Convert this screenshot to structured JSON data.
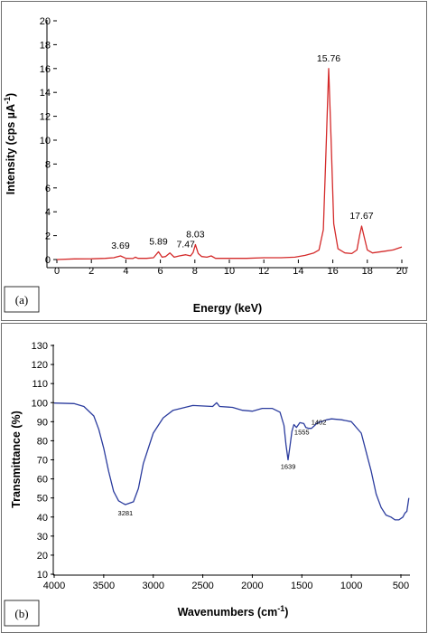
{
  "chart_data": [
    {
      "type": "line",
      "panel_label": "(a)",
      "xlabel": "Energy (keV)",
      "ylabel": "Intensity (cps µA",
      "ylabel_sup": "-1",
      "ylabel_close": ")",
      "xlim": [
        0,
        20
      ],
      "ylim": [
        0,
        20
      ],
      "x_ticks": [
        "0",
        "2",
        "4",
        "6",
        "8",
        "10",
        "12",
        "14",
        "16",
        "18",
        "20"
      ],
      "y_ticks": [
        "0",
        "2",
        "4",
        "6",
        "8",
        "10",
        "12",
        "14",
        "16",
        "18",
        "20"
      ],
      "grid": false,
      "line_color": "#d42a2a",
      "series": [
        {
          "x": [
            0.0,
            1.0,
            2.0,
            2.8,
            3.3,
            3.69,
            4.0,
            4.4,
            4.55,
            4.7,
            5.2,
            5.6,
            5.89,
            6.1,
            6.3,
            6.55,
            6.8,
            7.1,
            7.47,
            7.75,
            7.9,
            8.03,
            8.2,
            8.4,
            8.7,
            8.95,
            9.2,
            10.0,
            11.0,
            12.0,
            13.0,
            13.8,
            14.4,
            14.9,
            15.2,
            15.45,
            15.6,
            15.76,
            15.9,
            16.05,
            16.3,
            16.7,
            17.1,
            17.4,
            17.55,
            17.67,
            17.8,
            18.0,
            18.3,
            19.0,
            19.5,
            20.0
          ],
          "y": [
            0.0,
            0.05,
            0.06,
            0.1,
            0.15,
            0.3,
            0.1,
            0.08,
            0.2,
            0.1,
            0.1,
            0.15,
            0.65,
            0.2,
            0.25,
            0.55,
            0.2,
            0.3,
            0.4,
            0.3,
            0.6,
            1.25,
            0.5,
            0.25,
            0.2,
            0.3,
            0.1,
            0.1,
            0.1,
            0.15,
            0.15,
            0.2,
            0.35,
            0.55,
            0.8,
            2.5,
            9.0,
            16.0,
            10.0,
            3.0,
            0.9,
            0.55,
            0.5,
            0.8,
            2.0,
            2.8,
            2.0,
            0.8,
            0.55,
            0.7,
            0.8,
            1.05
          ]
        }
      ],
      "annotations": [
        {
          "text": "3.69",
          "x": 3.69,
          "y": 0.3
        },
        {
          "text": "5.89",
          "x": 5.89,
          "y": 0.65
        },
        {
          "text": "7.47",
          "x": 7.47,
          "y": 0.4
        },
        {
          "text": "8.03",
          "x": 8.03,
          "y": 1.25
        },
        {
          "text": "15.76",
          "x": 15.76,
          "y": 16.0
        },
        {
          "text": "17.67",
          "x": 17.67,
          "y": 2.8
        }
      ]
    },
    {
      "type": "line",
      "panel_label": "(b)",
      "xlabel": "Wavenumbers (cm",
      "xlabel_sup": "-1",
      "xlabel_close": ")",
      "ylabel": "Transmittance (%)",
      "xlim": [
        4000,
        500
      ],
      "x_reversed": true,
      "ylim": [
        10,
        130
      ],
      "x_ticks": [
        "4000",
        "3500",
        "3000",
        "2500",
        "2000",
        "1500",
        "1000",
        "500"
      ],
      "y_ticks": [
        "10",
        "20",
        "30",
        "40",
        "50",
        "60",
        "70",
        "80",
        "90",
        "100",
        "110",
        "120",
        "130"
      ],
      "grid": false,
      "line_color": "#2b3c9e",
      "series": [
        {
          "x": [
            4000,
            3800,
            3700,
            3600,
            3550,
            3500,
            3450,
            3400,
            3350,
            3300,
            3281,
            3200,
            3150,
            3100,
            3000,
            2900,
            2800,
            2600,
            2400,
            2360,
            2330,
            2200,
            2100,
            2000,
            1900,
            1800,
            1720,
            1680,
            1660,
            1639,
            1620,
            1600,
            1580,
            1555,
            1520,
            1480,
            1460,
            1430,
            1402,
            1370,
            1340,
            1300,
            1250,
            1200,
            1100,
            1000,
            900,
            850,
            800,
            750,
            700,
            650,
            600,
            560,
            520,
            480,
            460,
            440,
            420
          ],
          "y": [
            99.8,
            99.5,
            98.0,
            93.0,
            86.0,
            76.0,
            64.0,
            53.5,
            48.5,
            47.0,
            46.5,
            48.0,
            55.0,
            68.0,
            84.0,
            92.0,
            96.0,
            98.5,
            98.0,
            100.0,
            98.0,
            97.5,
            96.0,
            95.5,
            97.0,
            97.0,
            95.0,
            88.0,
            78.0,
            70.0,
            77.0,
            85.0,
            88.5,
            87.0,
            89.5,
            89.0,
            87.0,
            86.5,
            86.5,
            88.0,
            89.5,
            90.0,
            91.0,
            91.5,
            91.0,
            90.0,
            84.0,
            74.0,
            64.0,
            52.0,
            45.0,
            41.0,
            40.0,
            38.5,
            38.5,
            40.0,
            42.0,
            43.0,
            50.0
          ]
        }
      ],
      "annotations": [
        {
          "text": "3281",
          "x": 3281,
          "y": 46.5
        },
        {
          "text": "1639",
          "x": 1639,
          "y": 70.0
        },
        {
          "text": "1555",
          "x": 1555,
          "y": 87.0
        },
        {
          "text": "1402",
          "x": 1402,
          "y": 86.5
        }
      ]
    }
  ]
}
